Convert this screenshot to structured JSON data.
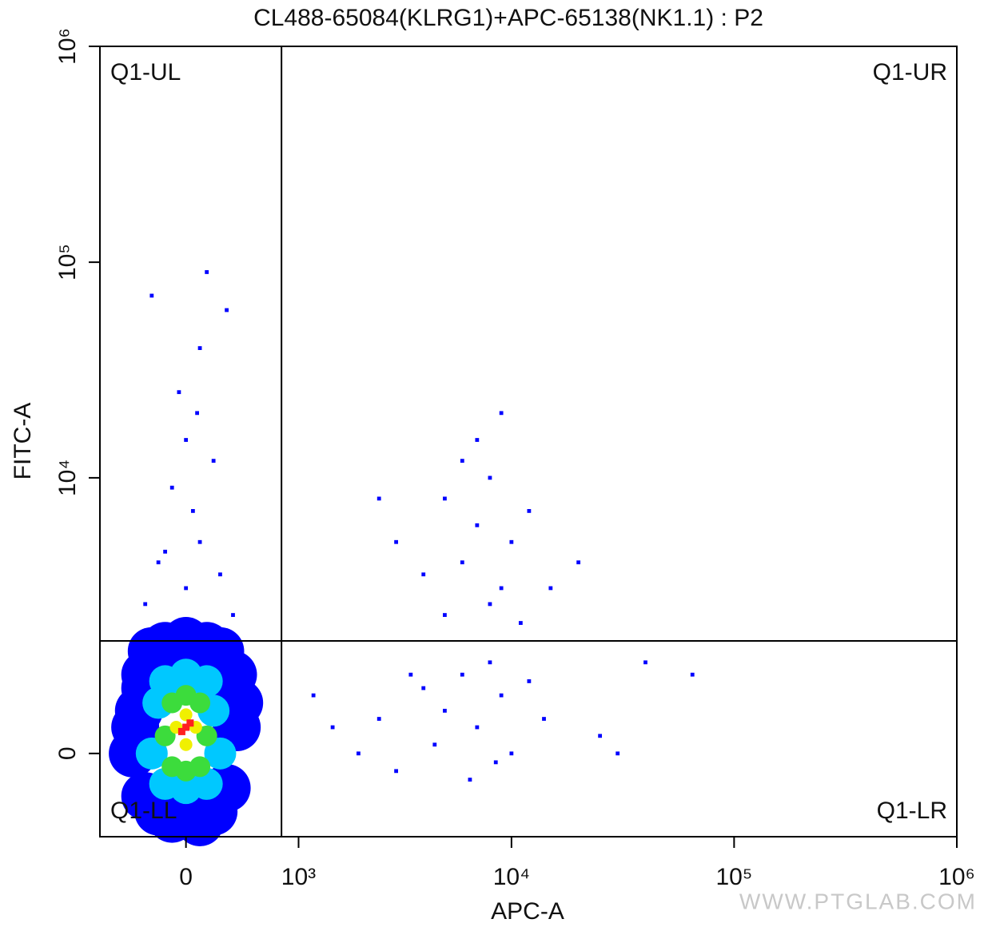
{
  "chart_data": {
    "type": "scatter",
    "title": "CL488-65084(KLRG1)+APC-65138(NK1.1) : P2",
    "x_label": "APC-A",
    "y_label": "FITC-A",
    "xscale": "biexponential",
    "yscale": "biexponential",
    "xlim": [
      -700,
      1000000
    ],
    "ylim": [
      -1070,
      1000000
    ],
    "xticks": [
      0,
      {
        "value": 1000,
        "label": "10³"
      },
      {
        "value": 10000,
        "label": "10⁴"
      },
      {
        "value": 100000,
        "label": "10⁵"
      },
      {
        "value": 1000000,
        "label": "10⁶"
      }
    ],
    "yticks": [
      0,
      {
        "value": 10000,
        "label": "10⁴"
      },
      {
        "value": 100000,
        "label": "10⁵"
      },
      {
        "value": 1000000,
        "label": "10⁶"
      }
    ],
    "gates": {
      "x": 800,
      "y": 1600
    },
    "quadrants": [
      "Q1-UL",
      "Q1-UR",
      "Q1-LL",
      "Q1-LR"
    ],
    "watermark": "WWW.PTGLAB.COM",
    "series": [
      {
        "color": "#0000ff",
        "x": [
          -400,
          -350,
          -300,
          -300,
          -250,
          -200,
          -150,
          -100,
          0,
          100,
          150,
          200,
          250,
          300,
          350,
          380,
          -380,
          0,
          300,
          -300,
          200,
          -200,
          50,
          400
        ],
        "values": [
          0,
          500,
          -500,
          1000,
          1400,
          -700,
          1500,
          -800,
          1600,
          -850,
          1500,
          -700,
          1400,
          -400,
          1000,
          300,
          300,
          -600,
          800,
          800,
          1200,
          1200,
          -400,
          600
        ]
      },
      {
        "color": "#00c8ff",
        "x": [
          -250,
          -200,
          -150,
          0,
          150,
          200,
          250,
          150,
          0,
          -150
        ],
        "values": [
          0,
          600,
          900,
          1000,
          900,
          500,
          0,
          -350,
          -400,
          -350
        ]
      },
      {
        "color": "#3cdc3c",
        "x": [
          -150,
          -100,
          0,
          100,
          150,
          100,
          -100,
          0
        ],
        "values": [
          200,
          600,
          700,
          600,
          200,
          -150,
          -150,
          -200
        ]
      },
      {
        "color": "#f0f000",
        "x": [
          -70,
          0,
          70,
          0
        ],
        "values": [
          300,
          450,
          300,
          100
        ]
      },
      {
        "color": "#ff2020",
        "x": [
          0,
          -30,
          30
        ],
        "values": [
          300,
          250,
          350
        ]
      },
      {
        "color": "#0000ff",
        "x": [
          0,
          -200,
          100,
          50,
          -100,
          200,
          0,
          -50,
          100,
          150,
          -250,
          300,
          -150,
          250,
          -300,
          350,
          80,
          5000,
          7000,
          8000,
          10000,
          6000,
          9000,
          12000,
          4000,
          7000,
          3000,
          15000,
          6000,
          8000,
          11000,
          5000,
          2500,
          20000,
          9000,
          1500,
          2000,
          2500,
          3000,
          4000,
          5000,
          6000,
          7000,
          8000,
          9000,
          10000,
          12000,
          14000,
          3500,
          6500,
          1200,
          4500,
          8500,
          30000,
          40000,
          65000,
          25000
        ],
        "values": [
          3000,
          4000,
          5000,
          7000,
          9000,
          12000,
          15000,
          25000,
          40000,
          90000,
          70000,
          60000,
          4500,
          3500,
          2500,
          2200,
          20000,
          8000,
          6000,
          10000,
          5000,
          4000,
          3000,
          7000,
          3500,
          15000,
          5000,
          3000,
          12000,
          2500,
          2000,
          2200,
          8000,
          4000,
          20000,
          300,
          0,
          400,
          -200,
          800,
          500,
          1000,
          300,
          1200,
          700,
          0,
          900,
          400,
          1000,
          -300,
          700,
          100,
          -100,
          0,
          1200,
          1000,
          200
        ]
      }
    ]
  }
}
